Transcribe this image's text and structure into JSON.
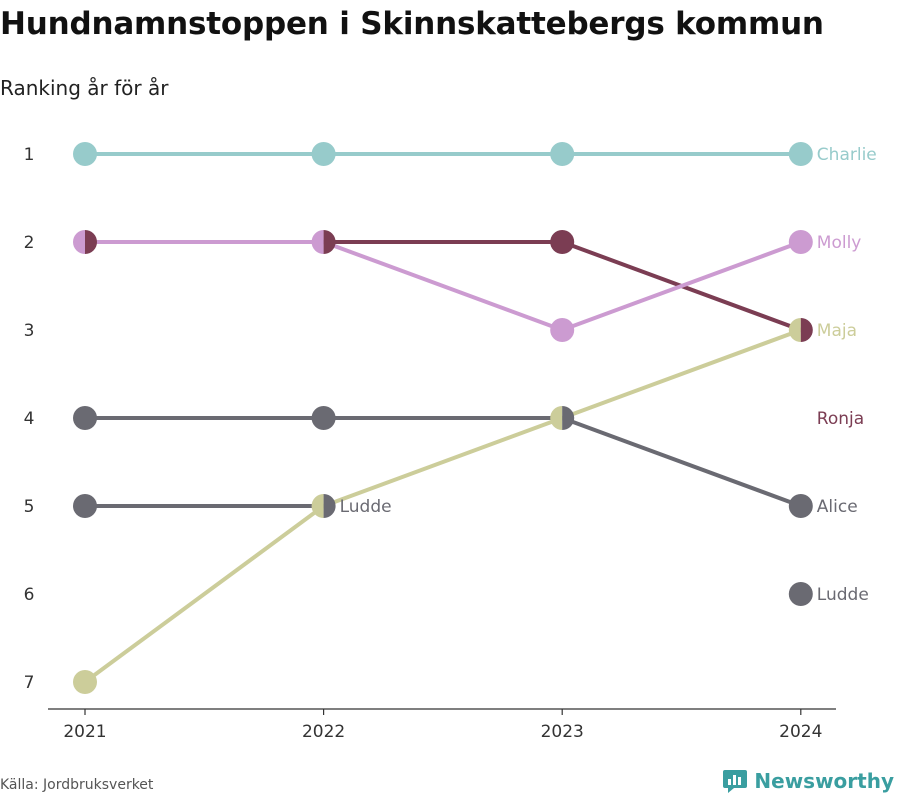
{
  "title": "Hundnamnstoppen i Skinnskattebergs kommun",
  "subtitle": "Ranking år för år",
  "source": "Källa: Jordbruksverket",
  "brand": "Newsworthy",
  "chart_data": {
    "type": "line",
    "x": [
      "2021",
      "2022",
      "2023",
      "2024"
    ],
    "yticks": [
      "1",
      "2",
      "3",
      "4",
      "5",
      "6",
      "7"
    ],
    "ylim": [
      1,
      7
    ],
    "y_inverted": true,
    "grid": false,
    "series": [
      {
        "name": "Charlie",
        "color": "#97cbcb",
        "values": [
          1,
          1,
          1,
          1
        ]
      },
      {
        "name": "Ronja",
        "color": "#7b3d53",
        "values": [
          2,
          2,
          2,
          3
        ]
      },
      {
        "name": "Molly",
        "color": "#cc9bd1",
        "values": [
          2,
          2,
          3,
          2
        ]
      },
      {
        "name": "Alice",
        "color": "#6a6a72",
        "values": [
          4,
          4,
          4,
          5
        ]
      },
      {
        "name": "Ludde",
        "color": "#6a6a72",
        "values": [
          5,
          5,
          null,
          6
        ]
      },
      {
        "name": "Maja",
        "color": "#cccd9a",
        "values": [
          7,
          5,
          4,
          3
        ]
      }
    ],
    "inline_label": {
      "series": "Ludde",
      "x": "2022",
      "text": "Ludde"
    }
  }
}
